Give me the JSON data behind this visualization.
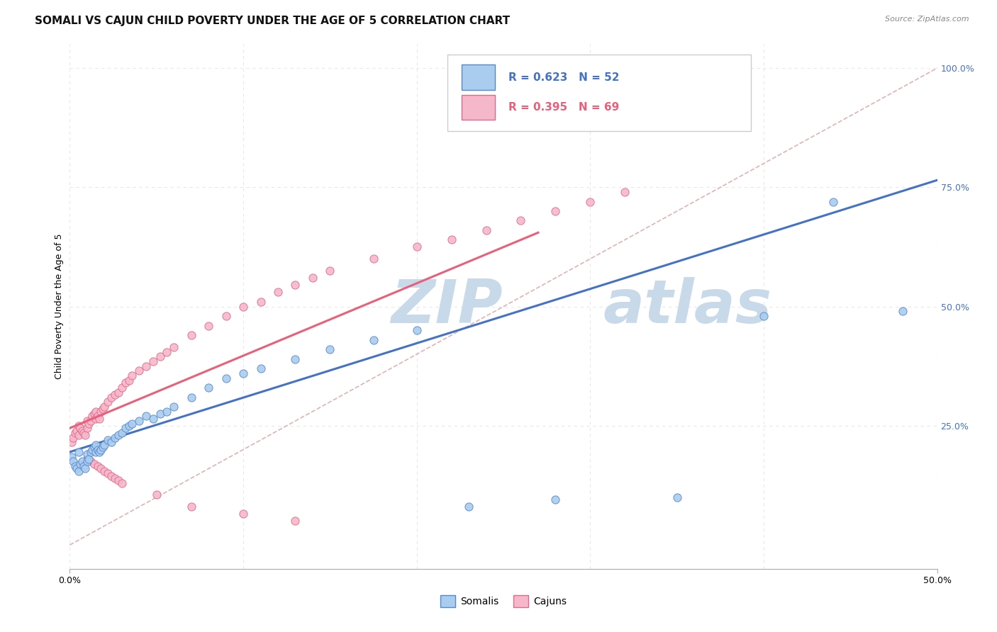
{
  "title": "SOMALI VS CAJUN CHILD POVERTY UNDER THE AGE OF 5 CORRELATION CHART",
  "source": "Source: ZipAtlas.com",
  "ylabel": "Child Poverty Under the Age of 5",
  "right_ytick_vals": [
    0.25,
    0.5,
    0.75,
    1.0
  ],
  "right_ytick_labels": [
    "25.0%",
    "50.0%",
    "75.0%",
    "100.0%"
  ],
  "somali_color_face": "#aaccee",
  "somali_color_edge": "#5588cc",
  "cajun_color_face": "#f5b8cb",
  "cajun_color_edge": "#e06888",
  "somali_line_color": "#4472c4",
  "cajun_line_color": "#e8607a",
  "ref_line_color": "#ddaaaa",
  "watermark_zip_color": "#c8daea",
  "watermark_atlas_color": "#c8daea",
  "background_color": "#ffffff",
  "grid_color": "#e8e8e8",
  "title_color": "#111111",
  "source_color": "#888888",
  "blue_label_color": "#4472c4",
  "pink_label_color": "#e8607a",
  "xlim_min": 0.0,
  "xlim_max": 0.5,
  "ylim_min": -0.05,
  "ylim_max": 1.05,
  "title_fontsize": 11,
  "ylabel_fontsize": 9,
  "tick_fontsize": 9,
  "legend_fontsize": 11,
  "source_fontsize": 8,
  "marker_size": 65,
  "line_width": 2.2,
  "somali_x": [
    0.001,
    0.002,
    0.003,
    0.004,
    0.005,
    0.005,
    0.006,
    0.007,
    0.008,
    0.009,
    0.01,
    0.01,
    0.011,
    0.012,
    0.013,
    0.014,
    0.015,
    0.015,
    0.016,
    0.017,
    0.018,
    0.019,
    0.02,
    0.022,
    0.024,
    0.026,
    0.028,
    0.03,
    0.032,
    0.034,
    0.036,
    0.04,
    0.044,
    0.048,
    0.052,
    0.056,
    0.06,
    0.07,
    0.08,
    0.09,
    0.1,
    0.11,
    0.13,
    0.15,
    0.175,
    0.2,
    0.23,
    0.28,
    0.35,
    0.4,
    0.44,
    0.48
  ],
  "somali_y": [
    0.185,
    0.175,
    0.165,
    0.16,
    0.155,
    0.195,
    0.17,
    0.175,
    0.165,
    0.16,
    0.175,
    0.19,
    0.18,
    0.195,
    0.2,
    0.205,
    0.21,
    0.195,
    0.2,
    0.195,
    0.2,
    0.205,
    0.21,
    0.22,
    0.215,
    0.225,
    0.23,
    0.235,
    0.245,
    0.25,
    0.255,
    0.26,
    0.27,
    0.265,
    0.275,
    0.28,
    0.29,
    0.31,
    0.33,
    0.35,
    0.36,
    0.37,
    0.39,
    0.41,
    0.43,
    0.45,
    0.08,
    0.095,
    0.1,
    0.48,
    0.72,
    0.49
  ],
  "cajun_x": [
    0.001,
    0.002,
    0.003,
    0.004,
    0.005,
    0.005,
    0.006,
    0.007,
    0.008,
    0.009,
    0.01,
    0.01,
    0.011,
    0.012,
    0.013,
    0.014,
    0.015,
    0.015,
    0.016,
    0.017,
    0.018,
    0.019,
    0.02,
    0.022,
    0.024,
    0.026,
    0.028,
    0.03,
    0.032,
    0.034,
    0.036,
    0.04,
    0.044,
    0.048,
    0.052,
    0.056,
    0.06,
    0.07,
    0.08,
    0.09,
    0.1,
    0.11,
    0.12,
    0.13,
    0.14,
    0.15,
    0.175,
    0.2,
    0.22,
    0.24,
    0.26,
    0.28,
    0.3,
    0.32,
    0.01,
    0.012,
    0.014,
    0.016,
    0.018,
    0.02,
    0.022,
    0.024,
    0.026,
    0.028,
    0.03,
    0.05,
    0.07,
    0.1,
    0.13
  ],
  "cajun_y": [
    0.215,
    0.225,
    0.235,
    0.24,
    0.23,
    0.25,
    0.245,
    0.24,
    0.235,
    0.23,
    0.245,
    0.26,
    0.255,
    0.26,
    0.27,
    0.275,
    0.28,
    0.265,
    0.27,
    0.265,
    0.28,
    0.285,
    0.29,
    0.3,
    0.31,
    0.315,
    0.32,
    0.33,
    0.34,
    0.345,
    0.355,
    0.365,
    0.375,
    0.385,
    0.395,
    0.405,
    0.415,
    0.44,
    0.46,
    0.48,
    0.5,
    0.51,
    0.53,
    0.545,
    0.56,
    0.575,
    0.6,
    0.625,
    0.64,
    0.66,
    0.68,
    0.7,
    0.72,
    0.74,
    0.18,
    0.175,
    0.17,
    0.165,
    0.16,
    0.155,
    0.15,
    0.145,
    0.14,
    0.135,
    0.13,
    0.105,
    0.08,
    0.065,
    0.05
  ],
  "ref_line_x": [
    0.0,
    0.5
  ],
  "ref_line_y": [
    0.0,
    1.0
  ],
  "somali_trend_x": [
    0.0,
    0.5
  ],
  "somali_trend_y": [
    0.195,
    0.765
  ],
  "cajun_trend_x": [
    0.0,
    0.27
  ],
  "cajun_trend_y": [
    0.245,
    0.655
  ]
}
